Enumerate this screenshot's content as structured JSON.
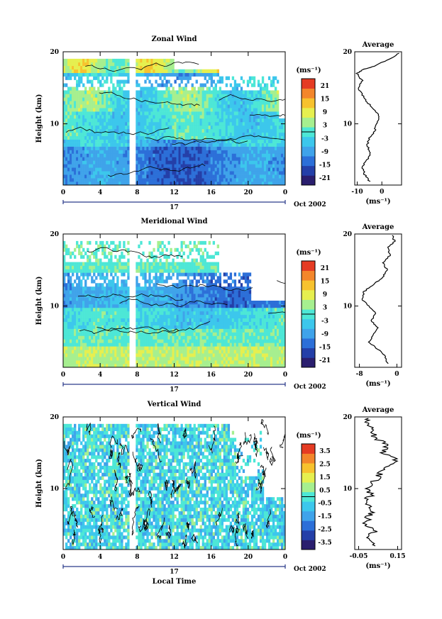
{
  "shared": {
    "xlabel": "Local Time",
    "day_label": "17",
    "month_label": "Oct 2002",
    "x_ticks": [
      "0",
      "4",
      "8",
      "12",
      "16",
      "20",
      "0"
    ],
    "y_ticks": [
      "20",
      "10"
    ],
    "ylabel": "Height (km)",
    "unit": "(ms⁻¹)",
    "avg_title": "Average",
    "colormap": [
      "#2a1e6e",
      "#243fa8",
      "#2c6fd8",
      "#3fa3ea",
      "#3cc7ec",
      "#4de7d6",
      "#a6ef8f",
      "#e6ef4f",
      "#f7c22e",
      "#f3862b",
      "#e53b23"
    ]
  },
  "chart_data": [
    {
      "type": "heatmap",
      "title": "Zonal Wind",
      "xlabel": "Local Time",
      "ylabel": "Height (km)",
      "x_range": [
        0,
        24
      ],
      "y_range": [
        1.5,
        20
      ],
      "colorbar": {
        "ticks": [
          "21",
          "15",
          "9",
          "3",
          "-3",
          "-9",
          "-15",
          "-21"
        ],
        "range": [
          -24,
          24
        ]
      },
      "average": {
        "title": "Average",
        "xlabel": "(ms⁻¹)",
        "x_ticks": [
          "-10",
          "0"
        ],
        "xlim": [
          -11,
          8
        ],
        "y_ticks": [
          "20",
          "10"
        ],
        "profile": [
          [
            -5,
            2
          ],
          [
            -7,
            3
          ],
          [
            -8,
            4
          ],
          [
            -6,
            5
          ],
          [
            -4.5,
            6
          ],
          [
            -6,
            7
          ],
          [
            -5,
            8
          ],
          [
            -3,
            9
          ],
          [
            -2,
            10
          ],
          [
            -1,
            11
          ],
          [
            -3,
            12
          ],
          [
            -6,
            13
          ],
          [
            -8,
            14
          ],
          [
            -9.5,
            15
          ],
          [
            -8,
            16
          ],
          [
            -10,
            17
          ],
          [
            -8,
            17.5
          ],
          [
            -3,
            18
          ],
          [
            3,
            19
          ],
          [
            7,
            19.8
          ]
        ]
      }
    },
    {
      "type": "heatmap",
      "title": "Meridional Wind",
      "xlabel": "Local Time",
      "ylabel": "Height (km)",
      "x_range": [
        0,
        24
      ],
      "y_range": [
        1.5,
        20
      ],
      "colorbar": {
        "ticks": [
          "21",
          "15",
          "9",
          "3",
          "-3",
          "-9",
          "-15",
          "-21"
        ],
        "range": [
          -24,
          24
        ]
      },
      "average": {
        "title": "Average",
        "xlabel": "(ms⁻¹)",
        "x_ticks": [
          "-8",
          "0"
        ],
        "xlim": [
          -9,
          1
        ],
        "y_ticks": [
          "20",
          "10"
        ],
        "profile": [
          [
            -2,
            2
          ],
          [
            -2.5,
            3
          ],
          [
            -4,
            4
          ],
          [
            -6,
            5
          ],
          [
            -5,
            6
          ],
          [
            -4,
            7
          ],
          [
            -5.5,
            8
          ],
          [
            -4.5,
            9
          ],
          [
            -6,
            10
          ],
          [
            -7.5,
            11
          ],
          [
            -7,
            12
          ],
          [
            -5,
            13
          ],
          [
            -3,
            14
          ],
          [
            -2,
            15
          ],
          [
            -3,
            16
          ],
          [
            -1.5,
            17
          ],
          [
            -2,
            18
          ],
          [
            -0.5,
            19
          ],
          [
            -1,
            19.8
          ]
        ]
      }
    },
    {
      "type": "heatmap",
      "title": "Vertical Wind",
      "xlabel": "Local Time",
      "ylabel": "Height (km)",
      "x_range": [
        0,
        24
      ],
      "y_range": [
        1.5,
        20
      ],
      "colorbar": {
        "ticks": [
          "3.5",
          "2.5",
          "1.5",
          "0.5",
          "-0.5",
          "-1.5",
          "-2.5",
          "-3.5"
        ],
        "range": [
          -4,
          4
        ]
      },
      "average": {
        "title": "Average",
        "xlabel": "(ms⁻¹)",
        "x_ticks": [
          "-0.05",
          "0.15"
        ],
        "xlim": [
          -0.07,
          0.17
        ],
        "y_ticks": [
          "20",
          "10"
        ],
        "profile": [
          [
            0.02,
            2
          ],
          [
            0.0,
            3
          ],
          [
            0.03,
            4
          ],
          [
            -0.01,
            5
          ],
          [
            0.0,
            6
          ],
          [
            0.02,
            7
          ],
          [
            -0.02,
            8
          ],
          [
            0.01,
            9
          ],
          [
            0.0,
            10
          ],
          [
            0.03,
            11
          ],
          [
            0.06,
            12
          ],
          [
            0.09,
            13
          ],
          [
            0.14,
            14
          ],
          [
            0.08,
            15
          ],
          [
            0.1,
            16
          ],
          [
            0.04,
            17
          ],
          [
            0.02,
            18
          ],
          [
            -0.01,
            19
          ],
          [
            0.0,
            19.8
          ]
        ]
      }
    }
  ]
}
